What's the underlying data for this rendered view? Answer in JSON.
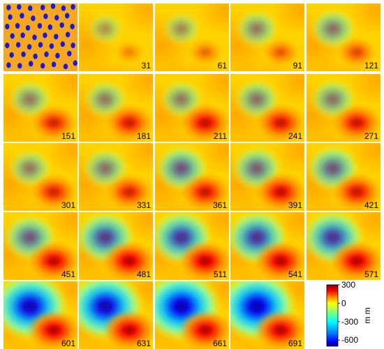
{
  "frames": [
    {
      "label": "",
      "map": "sensors"
    },
    {
      "label": "31",
      "hot": 0.1,
      "cold": 0.05
    },
    {
      "label": "61",
      "hot": 0.25,
      "cold": 0.1
    },
    {
      "label": "91",
      "hot": 0.35,
      "cold": 0.2
    },
    {
      "label": "121",
      "hot": 0.45,
      "cold": 0.25
    },
    {
      "label": "151",
      "hot": 0.7,
      "cold": 0.2
    },
    {
      "label": "181",
      "hot": 0.75,
      "cold": 0.2
    },
    {
      "label": "211",
      "hot": 0.85,
      "cold": 0.2
    },
    {
      "label": "241",
      "hot": 0.8,
      "cold": 0.25
    },
    {
      "label": "271",
      "hot": 0.8,
      "cold": 0.25
    },
    {
      "label": "301",
      "hot": 0.7,
      "cold": 0.2
    },
    {
      "label": "331",
      "hot": 0.7,
      "cold": 0.25
    },
    {
      "label": "361",
      "hot": 0.8,
      "cold": 0.4
    },
    {
      "label": "391",
      "hot": 0.85,
      "cold": 0.35
    },
    {
      "label": "421",
      "hot": 0.8,
      "cold": 0.4
    },
    {
      "label": "451",
      "hot": 0.9,
      "cold": 0.4
    },
    {
      "label": "481",
      "hot": 0.95,
      "cold": 0.55
    },
    {
      "label": "511",
      "hot": 0.95,
      "cold": 0.6
    },
    {
      "label": "541",
      "hot": 0.95,
      "cold": 0.6
    },
    {
      "label": "571",
      "hot": 0.95,
      "cold": 0.6
    },
    {
      "label": "601",
      "hot": 0.95,
      "cold": 0.9
    },
    {
      "label": "631",
      "hot": 0.95,
      "cold": 0.9
    },
    {
      "label": "661",
      "hot": 0.95,
      "cold": 0.95
    },
    {
      "label": "691",
      "hot": 0.95,
      "cold": 0.95
    }
  ],
  "colorbar": {
    "ticks": [
      {
        "value": 300,
        "label": "300"
      },
      {
        "value": 0,
        "label": "0"
      },
      {
        "value": -300,
        "label": "-300"
      },
      {
        "value": -600,
        "label": "-600"
      }
    ],
    "range": [
      -700,
      300
    ],
    "unit": "m m",
    "colors": {
      "dark_red": "#7f0000",
      "red": "#ff0000",
      "orange": "#ff8c00",
      "yellow": "#ffff00",
      "cyan": "#00ffff",
      "blue": "#0000ff",
      "dark_blue": "#00008f"
    }
  },
  "sensor_map": {
    "background": "#f5a623",
    "dot_color": "#1a1ad6",
    "dots": [
      [
        0.07,
        0.06
      ],
      [
        0.21,
        0.05
      ],
      [
        0.36,
        0.07
      ],
      [
        0.53,
        0.06
      ],
      [
        0.67,
        0.04
      ],
      [
        0.81,
        0.07
      ],
      [
        0.94,
        0.05
      ],
      [
        0.09,
        0.2
      ],
      [
        0.25,
        0.18
      ],
      [
        0.4,
        0.22
      ],
      [
        0.57,
        0.19
      ],
      [
        0.72,
        0.21
      ],
      [
        0.86,
        0.18
      ],
      [
        0.05,
        0.34
      ],
      [
        0.19,
        0.33
      ],
      [
        0.33,
        0.36
      ],
      [
        0.49,
        0.33
      ],
      [
        0.63,
        0.35
      ],
      [
        0.79,
        0.32
      ],
      [
        0.93,
        0.34
      ],
      [
        0.12,
        0.48
      ],
      [
        0.26,
        0.47
      ],
      [
        0.42,
        0.5
      ],
      [
        0.56,
        0.47
      ],
      [
        0.71,
        0.49
      ],
      [
        0.87,
        0.46
      ],
      [
        0.05,
        0.62
      ],
      [
        0.2,
        0.61
      ],
      [
        0.35,
        0.64
      ],
      [
        0.5,
        0.61
      ],
      [
        0.65,
        0.63
      ],
      [
        0.8,
        0.6
      ],
      [
        0.94,
        0.62
      ],
      [
        0.11,
        0.76
      ],
      [
        0.27,
        0.75
      ],
      [
        0.43,
        0.78
      ],
      [
        0.58,
        0.75
      ],
      [
        0.73,
        0.77
      ],
      [
        0.89,
        0.74
      ],
      [
        0.07,
        0.91
      ],
      [
        0.22,
        0.92
      ],
      [
        0.37,
        0.89
      ],
      [
        0.53,
        0.92
      ],
      [
        0.68,
        0.9
      ],
      [
        0.84,
        0.93
      ],
      [
        0.97,
        0.88
      ]
    ]
  }
}
